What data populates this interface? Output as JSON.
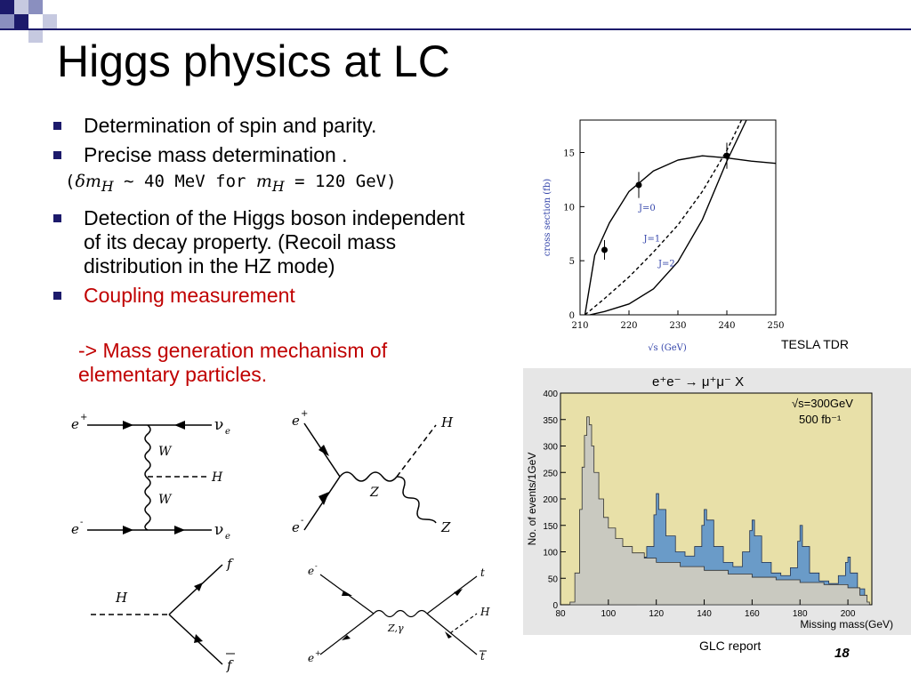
{
  "slide": {
    "title": "Higgs physics at LC",
    "bullets": [
      "Determination of spin and parity.",
      "Precise mass determination .",
      "Detection of the Higgs boson independent of its decay property. (Recoil mass distribution in the HZ mode)",
      "Coupling measurement"
    ],
    "formula": "(δm_H ∼ 40 MeV for m_H = 120 GeV)",
    "formula_parts": {
      "open": "(",
      "dm": "δm",
      "h1": "H",
      "mid": " ∼ 40 MeV for ",
      "m": "m",
      "h2": "H",
      "rest": " = 120 GeV)"
    },
    "sub_bullet": "-> Mass generation mechanism of elementary particles.",
    "page_number": "18",
    "colors": {
      "accent": "#1c1a6b",
      "highlight": "#c00000",
      "hist_bg": "#e8e0a8"
    }
  },
  "captions": {
    "tesla": "TESLA TDR",
    "glc": "GLC report"
  },
  "diagrams": {
    "d1": {
      "e_plus": "e",
      "e_plus_sup": "+",
      "e_minus": "e",
      "e_minus_sup": "-",
      "nu_top": "ν",
      "nu_top_sub": "e",
      "nu_bot": "ν",
      "nu_bot_sub": "e",
      "w1": "W",
      "w2": "W",
      "h": "H"
    },
    "d2": {
      "e_plus": "e",
      "e_plus_sup": "+",
      "e_minus": "e",
      "e_minus_sup": "-",
      "z_mid": "Z",
      "h": "H",
      "z_out": "Z"
    },
    "d3": {
      "h": "H",
      "f": "f",
      "fbar": "f"
    },
    "d4": {
      "e_minus": "e",
      "e_minus_sup": "-",
      "e_plus": "e",
      "e_plus_sup": "+",
      "zg": "Z,γ",
      "t": "t",
      "h": "H",
      "tbar": "t"
    }
  },
  "chart_data": [
    {
      "type": "line",
      "xlabel": "√s (GeV)",
      "ylabel": "cross section (fb)",
      "xlim": [
        210,
        250
      ],
      "ylim": [
        0,
        18
      ],
      "xticks": [
        210,
        220,
        230,
        240,
        250
      ],
      "yticks": [
        0,
        5,
        10,
        15
      ],
      "series": [
        {
          "name": "J=0",
          "style": "solid",
          "x": [
            211,
            213,
            216,
            220,
            225,
            230,
            235,
            240,
            245,
            250
          ],
          "y": [
            0,
            5.5,
            8.5,
            11.4,
            13.3,
            14.3,
            14.7,
            14.5,
            14.2,
            14.0
          ]
        },
        {
          "name": "J=1",
          "style": "dashed",
          "x": [
            211,
            215,
            220,
            225,
            230,
            235,
            240,
            243
          ],
          "y": [
            0,
            1.5,
            3.5,
            5.8,
            8.3,
            11.4,
            15.2,
            18
          ]
        },
        {
          "name": "J=2",
          "style": "solid",
          "x": [
            212,
            215,
            220,
            225,
            230,
            235,
            240,
            244
          ],
          "y": [
            0,
            0.3,
            1.0,
            2.4,
            4.9,
            8.8,
            14.2,
            18
          ]
        }
      ],
      "points": {
        "x": [
          215,
          222,
          240
        ],
        "y": [
          6.0,
          12.0,
          14.7
        ],
        "err": [
          0.9,
          1.2,
          1.2
        ]
      }
    },
    {
      "type": "area",
      "title": "e⁺e⁻ → μ⁺μ⁻ X",
      "annotation": [
        "√s=300GeV",
        "500 fb⁻¹"
      ],
      "xlabel": "Missing mass(GeV)",
      "ylabel": "No. of events/1GeV",
      "xlim": [
        80,
        210
      ],
      "ylim": [
        0,
        400
      ],
      "xticks": [
        80,
        100,
        120,
        140,
        160,
        180,
        200
      ],
      "yticks": [
        0,
        50,
        100,
        150,
        200,
        250,
        300,
        350,
        400
      ],
      "series": [
        {
          "name": "background",
          "x": [
            84,
            86,
            88,
            89,
            90,
            91,
            92,
            93,
            94,
            96,
            98,
            100,
            103,
            106,
            110,
            115,
            120,
            130,
            140,
            150,
            160,
            170,
            180,
            190,
            200,
            205,
            208
          ],
          "y": [
            5,
            60,
            180,
            260,
            320,
            355,
            340,
            300,
            250,
            200,
            165,
            145,
            125,
            110,
            98,
            88,
            80,
            72,
            65,
            58,
            52,
            47,
            42,
            38,
            32,
            18,
            5
          ]
        },
        {
          "name": "signal",
          "x": [
            112,
            116,
            119,
            120,
            121,
            124,
            128,
            132,
            136,
            139,
            140,
            141,
            144,
            148,
            152,
            156,
            159,
            160,
            161,
            164,
            168,
            172,
            176,
            179,
            180,
            181,
            184,
            188,
            192,
            196,
            199,
            200,
            201,
            204,
            207
          ],
          "y": [
            90,
            110,
            170,
            210,
            180,
            130,
            100,
            92,
            110,
            150,
            180,
            160,
            110,
            80,
            72,
            100,
            140,
            160,
            130,
            80,
            60,
            55,
            70,
            120,
            150,
            110,
            60,
            45,
            40,
            55,
            80,
            90,
            60,
            30,
            10
          ]
        }
      ]
    }
  ]
}
